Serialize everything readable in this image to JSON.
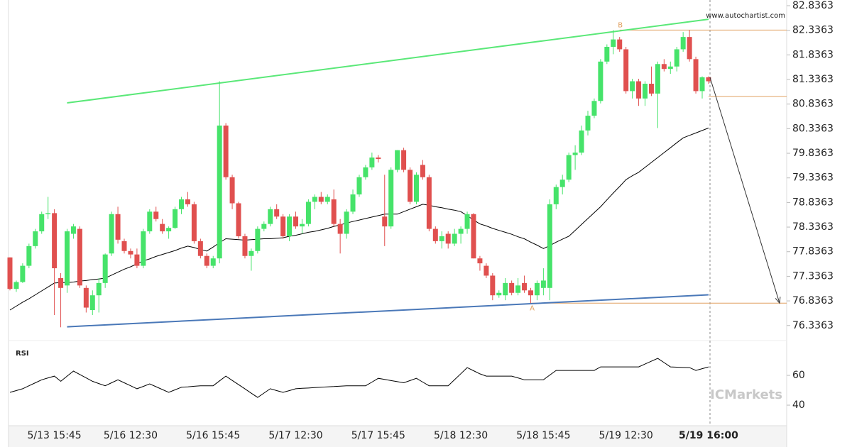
{
  "chart_data": {
    "type": "candlestick",
    "watermark": "www.autochartist.com",
    "brand": "ICMarkets",
    "categories": [
      null,
      null,
      null,
      null,
      null,
      null,
      null,
      "5/13 15:45",
      null,
      null,
      null,
      null,
      null,
      null,
      null,
      null,
      null,
      null,
      null,
      "5/16 12:30",
      null,
      null,
      null,
      null,
      null,
      null,
      null,
      null,
      null,
      null,
      null,
      null,
      "5/16 15:45",
      null,
      null,
      null,
      null,
      null,
      null,
      null,
      null,
      null,
      null,
      null,
      null,
      "5/17 12:30",
      null,
      null,
      null,
      null,
      null,
      null,
      null,
      null,
      null,
      null,
      null,
      null,
      "5/17 15:45",
      null,
      null,
      null,
      null,
      null,
      null,
      null,
      null,
      null,
      null,
      null,
      null,
      "5/18 12:30",
      null,
      null,
      null,
      null,
      null,
      null,
      null,
      null,
      null,
      null,
      null,
      null,
      "5/18 15:45",
      null,
      null,
      null,
      null,
      null,
      null,
      null,
      null,
      null,
      null,
      null,
      null,
      "5/19 12:30",
      null,
      null,
      null,
      null,
      null,
      null,
      null,
      null,
      null,
      null,
      null,
      null,
      "5/19 16:00"
    ],
    "open": [
      77.72,
      77.08,
      77.22,
      77.55,
      77.95,
      78.25,
      78.6,
      78.62,
      77.3,
      77.15,
      78.2,
      78.3,
      77.1,
      76.65,
      76.95,
      77.2,
      77.8,
      78.6,
      78.05,
      77.85,
      77.78,
      77.55,
      78.25,
      78.65,
      78.4,
      78.25,
      78.32,
      78.7,
      78.9,
      78.8,
      78.05,
      77.75,
      77.55,
      77.7,
      80.4,
      79.35,
      78.82,
      78.15,
      77.75,
      77.85,
      78.3,
      78.4,
      78.7,
      78.55,
      78.15,
      78.55,
      78.35,
      78.4,
      78.85,
      78.95,
      78.85,
      78.9,
      78.4,
      78.2,
      78.65,
      79.0,
      79.35,
      79.55,
      79.75,
      78.55,
      78.35,
      79.5,
      79.9,
      79.5,
      78.85,
      79.6,
      79.35,
      78.3,
      78.05,
      78.2,
      78.0,
      78.2,
      78.3,
      78.6,
      77.7,
      77.55,
      77.35,
      76.95,
      76.95,
      77.2,
      77.0,
      77.2,
      77.05,
      76.95,
      77.1,
      77.1,
      78.8,
      79.15,
      79.3,
      79.8,
      79.85,
      80.3,
      80.6,
      80.9,
      81.7,
      82.0,
      82.15,
      81.95,
      81.1,
      81.3,
      80.95,
      81.25,
      81.05,
      81.65,
      81.55,
      81.6,
      81.95,
      82.2,
      81.75,
      81.1,
      81.38
    ],
    "high": [
      77.72,
      77.25,
      77.6,
      78.0,
      78.3,
      78.65,
      78.95,
      78.7,
      77.4,
      78.3,
      78.4,
      78.35,
      77.15,
      77.05,
      77.3,
      77.8,
      78.65,
      78.75,
      78.1,
      77.9,
      77.9,
      78.3,
      78.7,
      78.75,
      78.5,
      78.35,
      78.75,
      78.95,
      79.05,
      78.85,
      78.1,
      77.8,
      77.75,
      81.3,
      80.45,
      79.4,
      78.85,
      78.2,
      77.9,
      78.35,
      78.45,
      78.75,
      78.8,
      78.6,
      78.6,
      78.65,
      78.5,
      78.9,
      79.0,
      79.05,
      79.0,
      79.1,
      78.5,
      78.7,
      79.1,
      79.4,
      79.6,
      79.85,
      79.8,
      79.4,
      79.55,
      79.9,
      79.95,
      79.55,
      79.45,
      79.7,
      79.4,
      78.35,
      78.25,
      78.25,
      78.3,
      78.35,
      78.65,
      78.62,
      77.75,
      77.6,
      77.4,
      77.05,
      77.3,
      77.25,
      77.3,
      77.35,
      77.1,
      77.25,
      77.5,
      78.9,
      79.2,
      79.4,
      79.85,
      80.0,
      80.4,
      80.7,
      80.95,
      81.75,
      82.05,
      82.34,
      82.2,
      82.0,
      81.35,
      81.35,
      81.3,
      81.6,
      81.7,
      81.75,
      81.7,
      82.0,
      82.3,
      82.34,
      81.8,
      81.4,
      81.4
    ],
    "low": [
      77.05,
      77.02,
      77.2,
      77.5,
      77.9,
      78.2,
      78.5,
      76.55,
      76.3,
      77.0,
      78.1,
      77.1,
      76.6,
      76.55,
      76.6,
      77.1,
      77.75,
      78.0,
      77.8,
      77.7,
      77.5,
      77.5,
      78.2,
      78.45,
      78.2,
      78.1,
      78.3,
      78.6,
      78.75,
      78.0,
      77.7,
      77.5,
      77.5,
      77.6,
      79.3,
      78.7,
      78.1,
      77.7,
      77.45,
      77.8,
      78.25,
      78.35,
      78.5,
      78.1,
      78.05,
      78.3,
      78.2,
      78.35,
      78.7,
      78.8,
      78.8,
      78.35,
      77.8,
      78.1,
      78.6,
      78.95,
      79.3,
      79.5,
      79.65,
      77.95,
      78.3,
      79.45,
      79.45,
      78.8,
      78.8,
      79.3,
      78.25,
      78.0,
      77.9,
      77.9,
      77.95,
      78.0,
      78.2,
      77.7,
      77.45,
      77.3,
      76.85,
      76.9,
      76.85,
      76.95,
      76.95,
      77.0,
      76.79,
      76.85,
      76.95,
      76.85,
      78.7,
      79.0,
      79.25,
      79.5,
      79.8,
      80.2,
      80.55,
      80.85,
      81.65,
      81.85,
      81.9,
      81.05,
      80.95,
      80.8,
      80.8,
      81.0,
      80.35,
      81.5,
      81.45,
      81.5,
      81.9,
      81.7,
      81.05,
      80.95,
      81.25
    ],
    "close": [
      77.08,
      77.22,
      77.55,
      77.95,
      78.25,
      78.6,
      78.62,
      77.5,
      77.1,
      78.25,
      78.35,
      77.15,
      76.7,
      76.95,
      77.2,
      77.78,
      78.6,
      78.08,
      77.85,
      77.78,
      77.55,
      78.25,
      78.65,
      78.5,
      78.25,
      78.32,
      78.7,
      78.9,
      78.8,
      78.05,
      77.75,
      77.55,
      77.7,
      80.4,
      79.35,
      78.82,
      78.15,
      77.75,
      77.85,
      78.3,
      78.4,
      78.7,
      78.55,
      78.15,
      78.55,
      78.35,
      78.4,
      78.85,
      78.95,
      78.85,
      78.95,
      78.4,
      78.2,
      78.65,
      79.0,
      79.35,
      79.55,
      79.75,
      79.72,
      78.35,
      79.5,
      79.9,
      79.5,
      78.85,
      79.4,
      79.35,
      78.3,
      78.05,
      78.15,
      78.0,
      78.2,
      78.3,
      78.6,
      77.7,
      77.6,
      77.35,
      76.95,
      77.0,
      77.2,
      77.0,
      77.15,
      77.05,
      76.95,
      77.2,
      77.25,
      78.8,
      79.15,
      79.3,
      79.8,
      79.85,
      80.3,
      80.6,
      80.9,
      81.7,
      82.0,
      82.15,
      81.95,
      81.1,
      81.3,
      80.95,
      81.25,
      81.05,
      81.65,
      81.55,
      81.6,
      81.95,
      82.2,
      81.75,
      81.1,
      81.38,
      81.3
    ],
    "up_color": "#46e36a",
    "down_color": "#e0504f",
    "ylim": [
      76.03,
      82.8363
    ],
    "yticks": [
      82.8363,
      82.3363,
      81.8363,
      81.3363,
      80.8363,
      80.3363,
      79.8363,
      79.3363,
      78.8363,
      78.3363,
      77.8363,
      77.3363,
      76.8363,
      76.3363
    ],
    "moving_average": {
      "color": "#000000",
      "values": [
        76.65,
        76.73,
        76.81,
        76.88,
        76.96,
        77.04,
        77.12,
        77.2,
        77.21,
        77.21,
        77.22,
        77.24,
        77.25,
        77.27,
        77.28,
        77.3,
        77.36,
        77.42,
        77.48,
        77.53,
        77.59,
        77.65,
        77.69,
        77.74,
        77.78,
        77.82,
        77.86,
        77.91,
        77.95,
        77.92,
        77.88,
        77.85,
        77.93,
        78.02,
        78.1,
        78.09,
        78.08,
        78.07,
        78.08,
        78.09,
        78.1,
        78.1,
        78.11,
        78.12,
        78.15,
        78.17,
        78.2,
        78.23,
        78.25,
        78.28,
        78.31,
        78.35,
        78.38,
        78.42,
        78.45,
        78.48,
        78.51,
        78.54,
        78.57,
        78.6,
        78.6,
        78.6,
        78.65,
        78.7,
        78.75,
        78.8,
        78.78,
        78.75,
        78.73,
        78.7,
        78.68,
        78.65,
        78.57,
        78.48,
        78.4,
        78.36,
        78.31,
        78.27,
        78.23,
        78.19,
        78.14,
        78.1,
        78.03,
        77.97,
        77.9,
        77.96,
        78.03,
        78.09,
        78.15,
        78.27,
        78.39,
        78.51,
        78.63,
        78.75,
        78.89,
        79.03,
        79.16,
        79.3,
        79.38,
        79.45,
        79.55,
        79.65,
        79.75,
        79.85,
        79.95,
        80.05,
        80.15,
        80.2,
        80.25,
        80.3,
        80.35
      ]
    },
    "resistance": {
      "color": "#5ae878",
      "x": [
        9,
        110
      ],
      "values": [
        80.86,
        82.56
      ]
    },
    "support": {
      "color": "#4a78b8",
      "x": [
        9,
        110
      ],
      "values": [
        76.31,
        76.96
      ]
    },
    "levels": [
      {
        "label": "B",
        "value": 82.34
      },
      {
        "value": 80.99
      },
      {
        "label": "A",
        "value": 76.79
      }
    ],
    "level_color": "#e0a060",
    "forecast_arrow": {
      "values": [
        81.38,
        76.79
      ]
    },
    "rsi": {
      "title": "RSI",
      "color": "#000000",
      "ylim": [
        26.2,
        78.6
      ],
      "yticks": [
        40,
        60
      ],
      "values": [
        48.6,
        49.8,
        51,
        53,
        55,
        57,
        58.3,
        59.5,
        56,
        59.5,
        62.9,
        60.6,
        58.3,
        56,
        54.5,
        53,
        55,
        57,
        55,
        53,
        51,
        52.6,
        54.3,
        52.4,
        50.5,
        48.6,
        50.3,
        52,
        52.3,
        52.7,
        53,
        53,
        53,
        56.3,
        59.5,
        56.6,
        53.8,
        50.9,
        48,
        45.2,
        48.1,
        51,
        49.8,
        48.6,
        49.8,
        51,
        51.3,
        51.5,
        51.8,
        52,
        52.3,
        52.5,
        52.8,
        53,
        53,
        53,
        53,
        55.5,
        58,
        57.3,
        56.5,
        55.8,
        55,
        56.5,
        58,
        55.5,
        53,
        53,
        53,
        53,
        57,
        61.1,
        65.2,
        63.1,
        61,
        59.5,
        59.5,
        59.5,
        59.5,
        59.5,
        58.3,
        57,
        57,
        57,
        57,
        60.2,
        63.3,
        63.3,
        63.3,
        63.3,
        63.3,
        63.3,
        63.3,
        65.7,
        65.7,
        65.7,
        65.7,
        65.7,
        65.7,
        65.7,
        67.6,
        69.5,
        71.4,
        68.6,
        65.7,
        65.5,
        65.3,
        65.2,
        63.3,
        64.5,
        65.7
      ]
    }
  }
}
